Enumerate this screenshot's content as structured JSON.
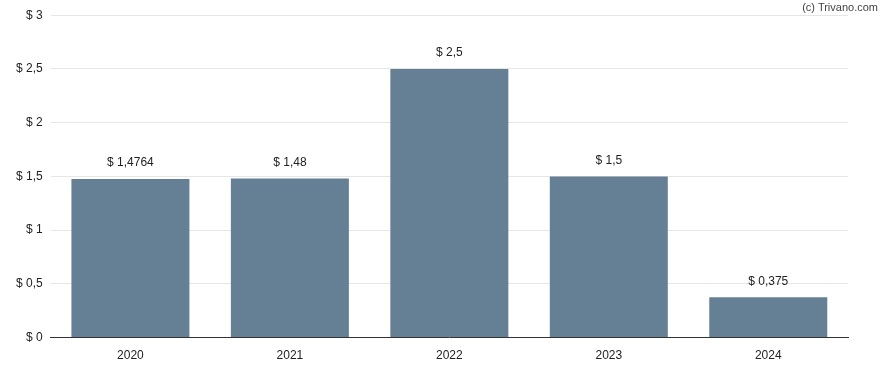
{
  "chart_data": {
    "type": "bar",
    "annotation": "(c) Trivano.com",
    "categories": [
      "2020",
      "2021",
      "2022",
      "2023",
      "2024"
    ],
    "values": [
      1.4764,
      1.48,
      2.5,
      1.5,
      0.375
    ],
    "value_labels": [
      "$ 1,4764",
      "$ 1,48",
      "$ 2,5",
      "$ 1,5",
      "$ 0,375"
    ],
    "data_labels": true,
    "color": "#657f94",
    "ylim": [
      0,
      3
    ],
    "yticks": [
      {
        "value": 0,
        "label": "$ 0"
      },
      {
        "value": 0.5,
        "label": "$ 0,5"
      },
      {
        "value": 1,
        "label": "$ 1"
      },
      {
        "value": 1.5,
        "label": "$ 1,5"
      },
      {
        "value": 2,
        "label": "$ 2"
      },
      {
        "value": 2.5,
        "label": "$ 2,5"
      },
      {
        "value": 3,
        "label": "$ 3"
      }
    ],
    "grid": true
  }
}
